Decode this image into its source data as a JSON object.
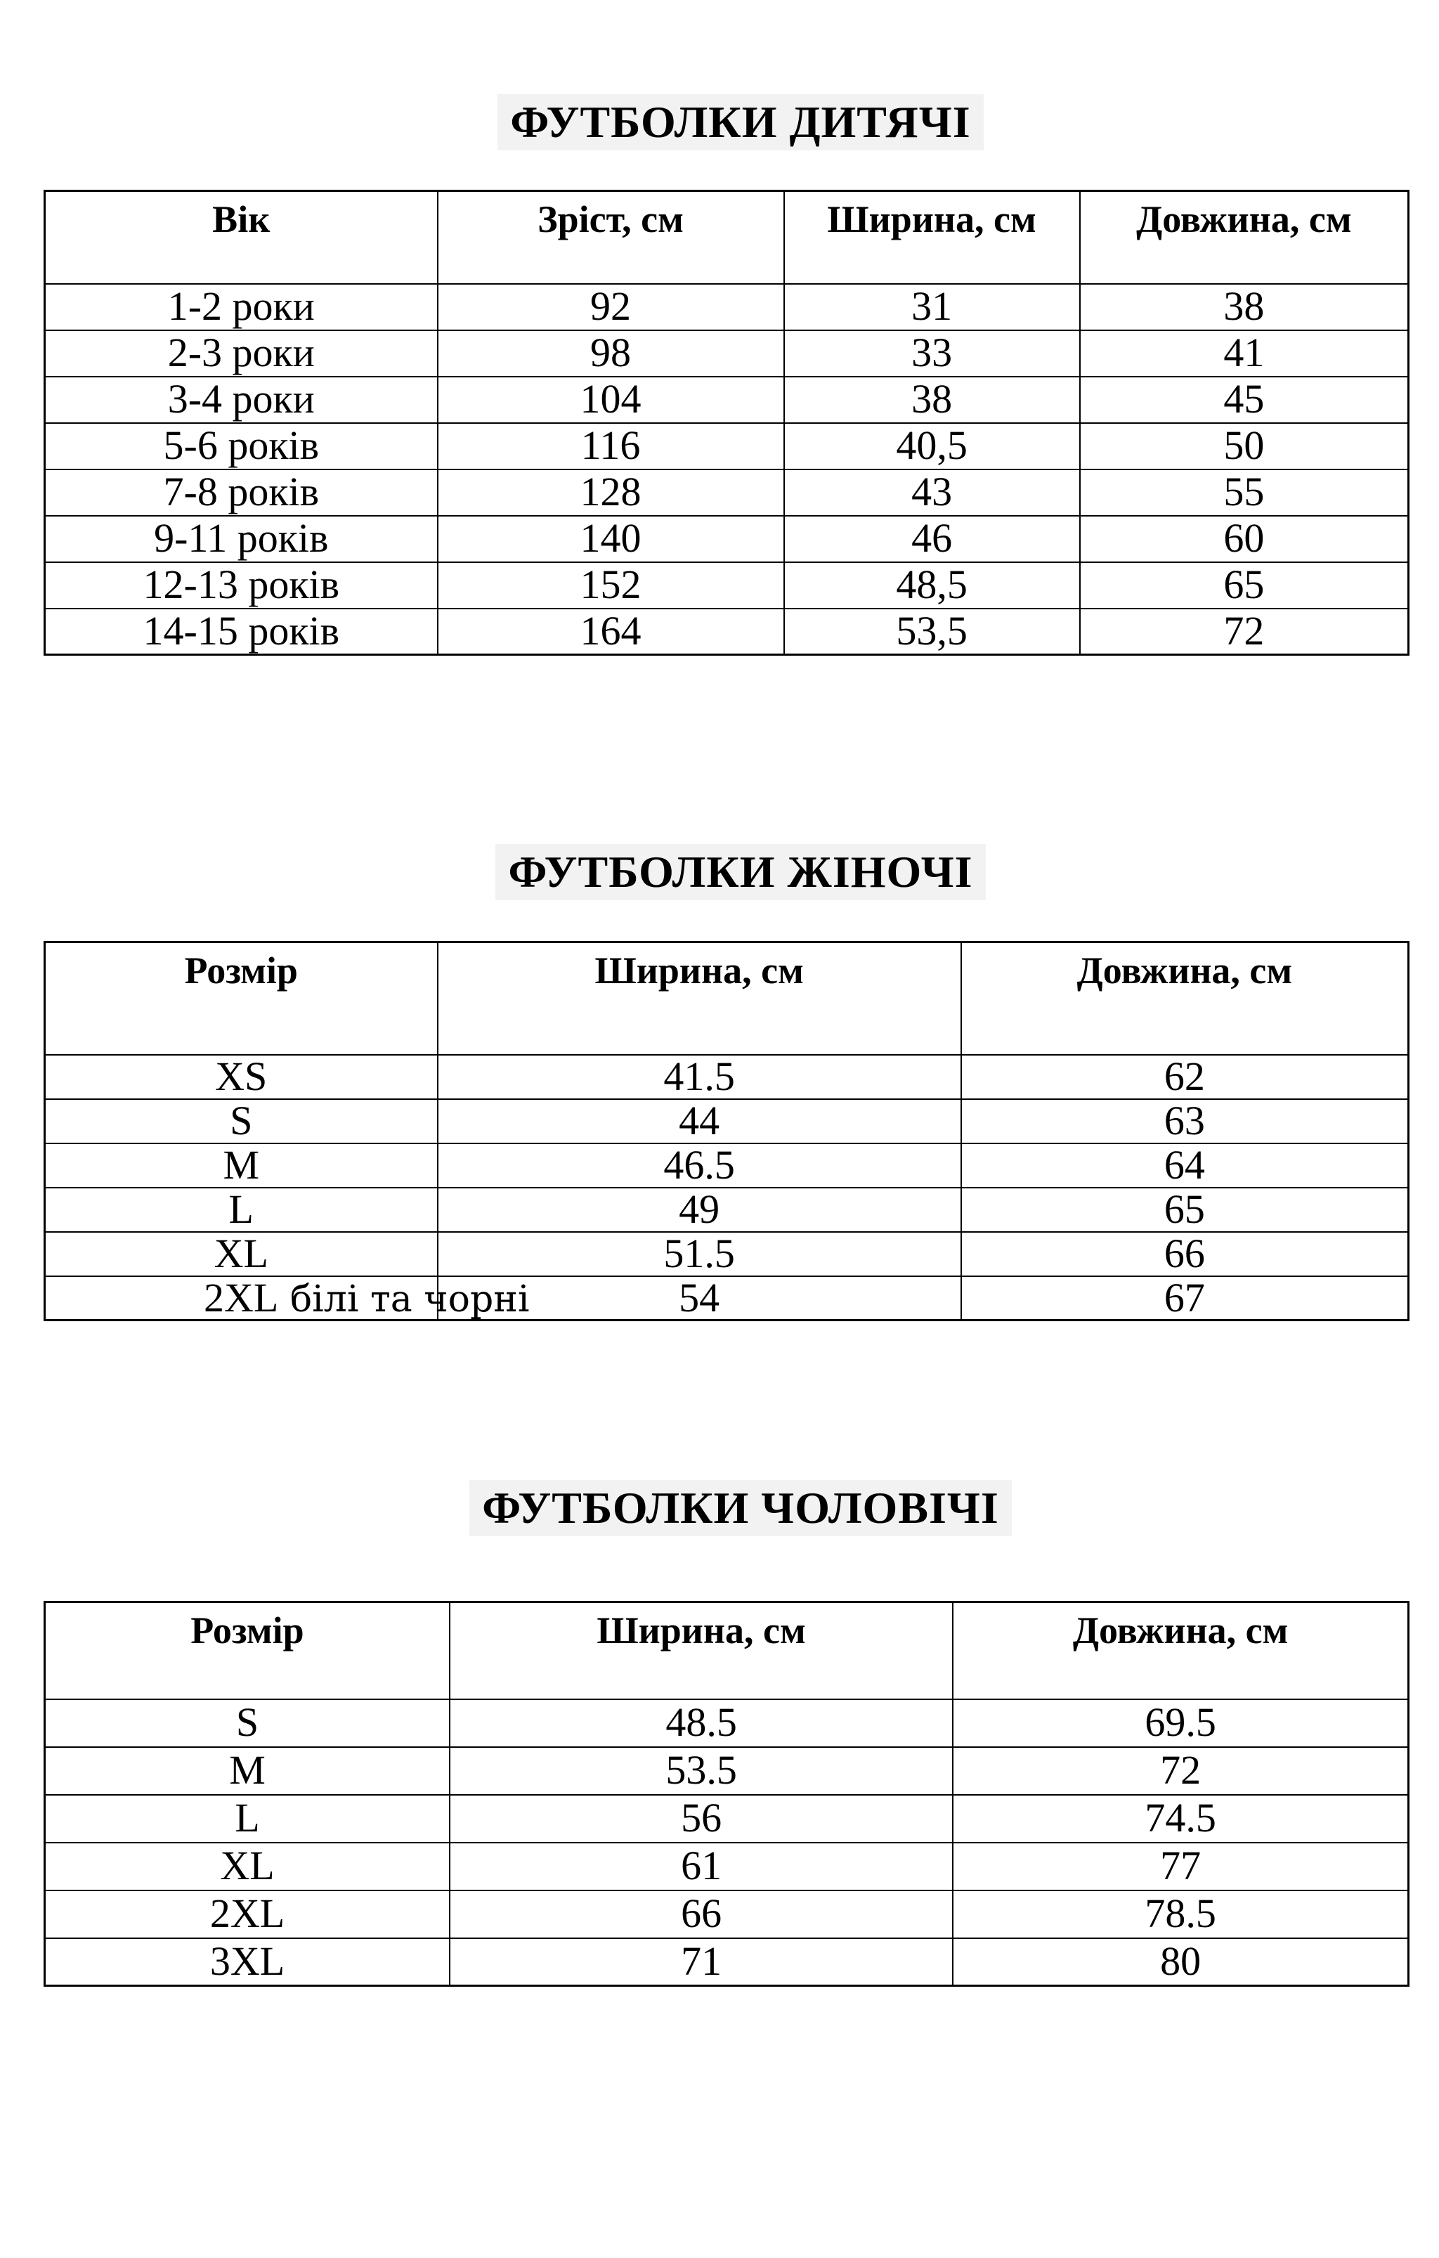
{
  "page": {
    "background": "#ffffff",
    "text_color": "#000000",
    "title_highlight_color": "#f2f2f2",
    "border_color": "#000000"
  },
  "tables": [
    {
      "id": "children",
      "title": "ФУТБОЛКИ ДИТЯЧІ",
      "headers": [
        "Вік",
        "Зріст, см",
        "Ширина, см",
        "Довжина, см"
      ],
      "rows": [
        [
          "1-2 роки",
          "92",
          "31",
          "38"
        ],
        [
          "2-3 роки",
          "98",
          "33",
          "41"
        ],
        [
          "3-4 роки",
          "104",
          "38",
          "45"
        ],
        [
          "5-6 років",
          "116",
          "40,5",
          "50"
        ],
        [
          "7-8 років",
          "128",
          "43",
          "55"
        ],
        [
          "9-11 років",
          "140",
          "46",
          "60"
        ],
        [
          "12-13 років",
          "152",
          "48,5",
          "65"
        ],
        [
          "14-15 років",
          "164",
          "53,5",
          "72"
        ]
      ]
    },
    {
      "id": "women",
      "title": "ФУТБОЛКИ ЖІНОЧІ",
      "headers": [
        "Розмір",
        "Ширина, см",
        "Довжина, см"
      ],
      "rows": [
        [
          "XS",
          "41.5",
          "62"
        ],
        [
          "S",
          "44",
          "63"
        ],
        [
          "M",
          "46.5",
          "64"
        ],
        [
          "L",
          "49",
          "65"
        ],
        [
          "XL",
          "51.5",
          "66"
        ],
        [
          {
            "text": "2XL",
            "note": "білі та чорні"
          },
          "54",
          "67"
        ]
      ]
    },
    {
      "id": "men",
      "title": "ФУТБОЛКИ ЧОЛОВІЧІ",
      "headers": [
        "Розмір",
        "Ширина, см",
        "Довжина, см"
      ],
      "rows": [
        [
          "S",
          "48.5",
          "69.5"
        ],
        [
          "M",
          "53.5",
          "72"
        ],
        [
          "L",
          "56",
          "74.5"
        ],
        [
          "XL",
          "61",
          "77"
        ],
        [
          "2XL",
          "66",
          "78.5"
        ],
        [
          "3XL",
          "71",
          "80"
        ]
      ]
    }
  ]
}
